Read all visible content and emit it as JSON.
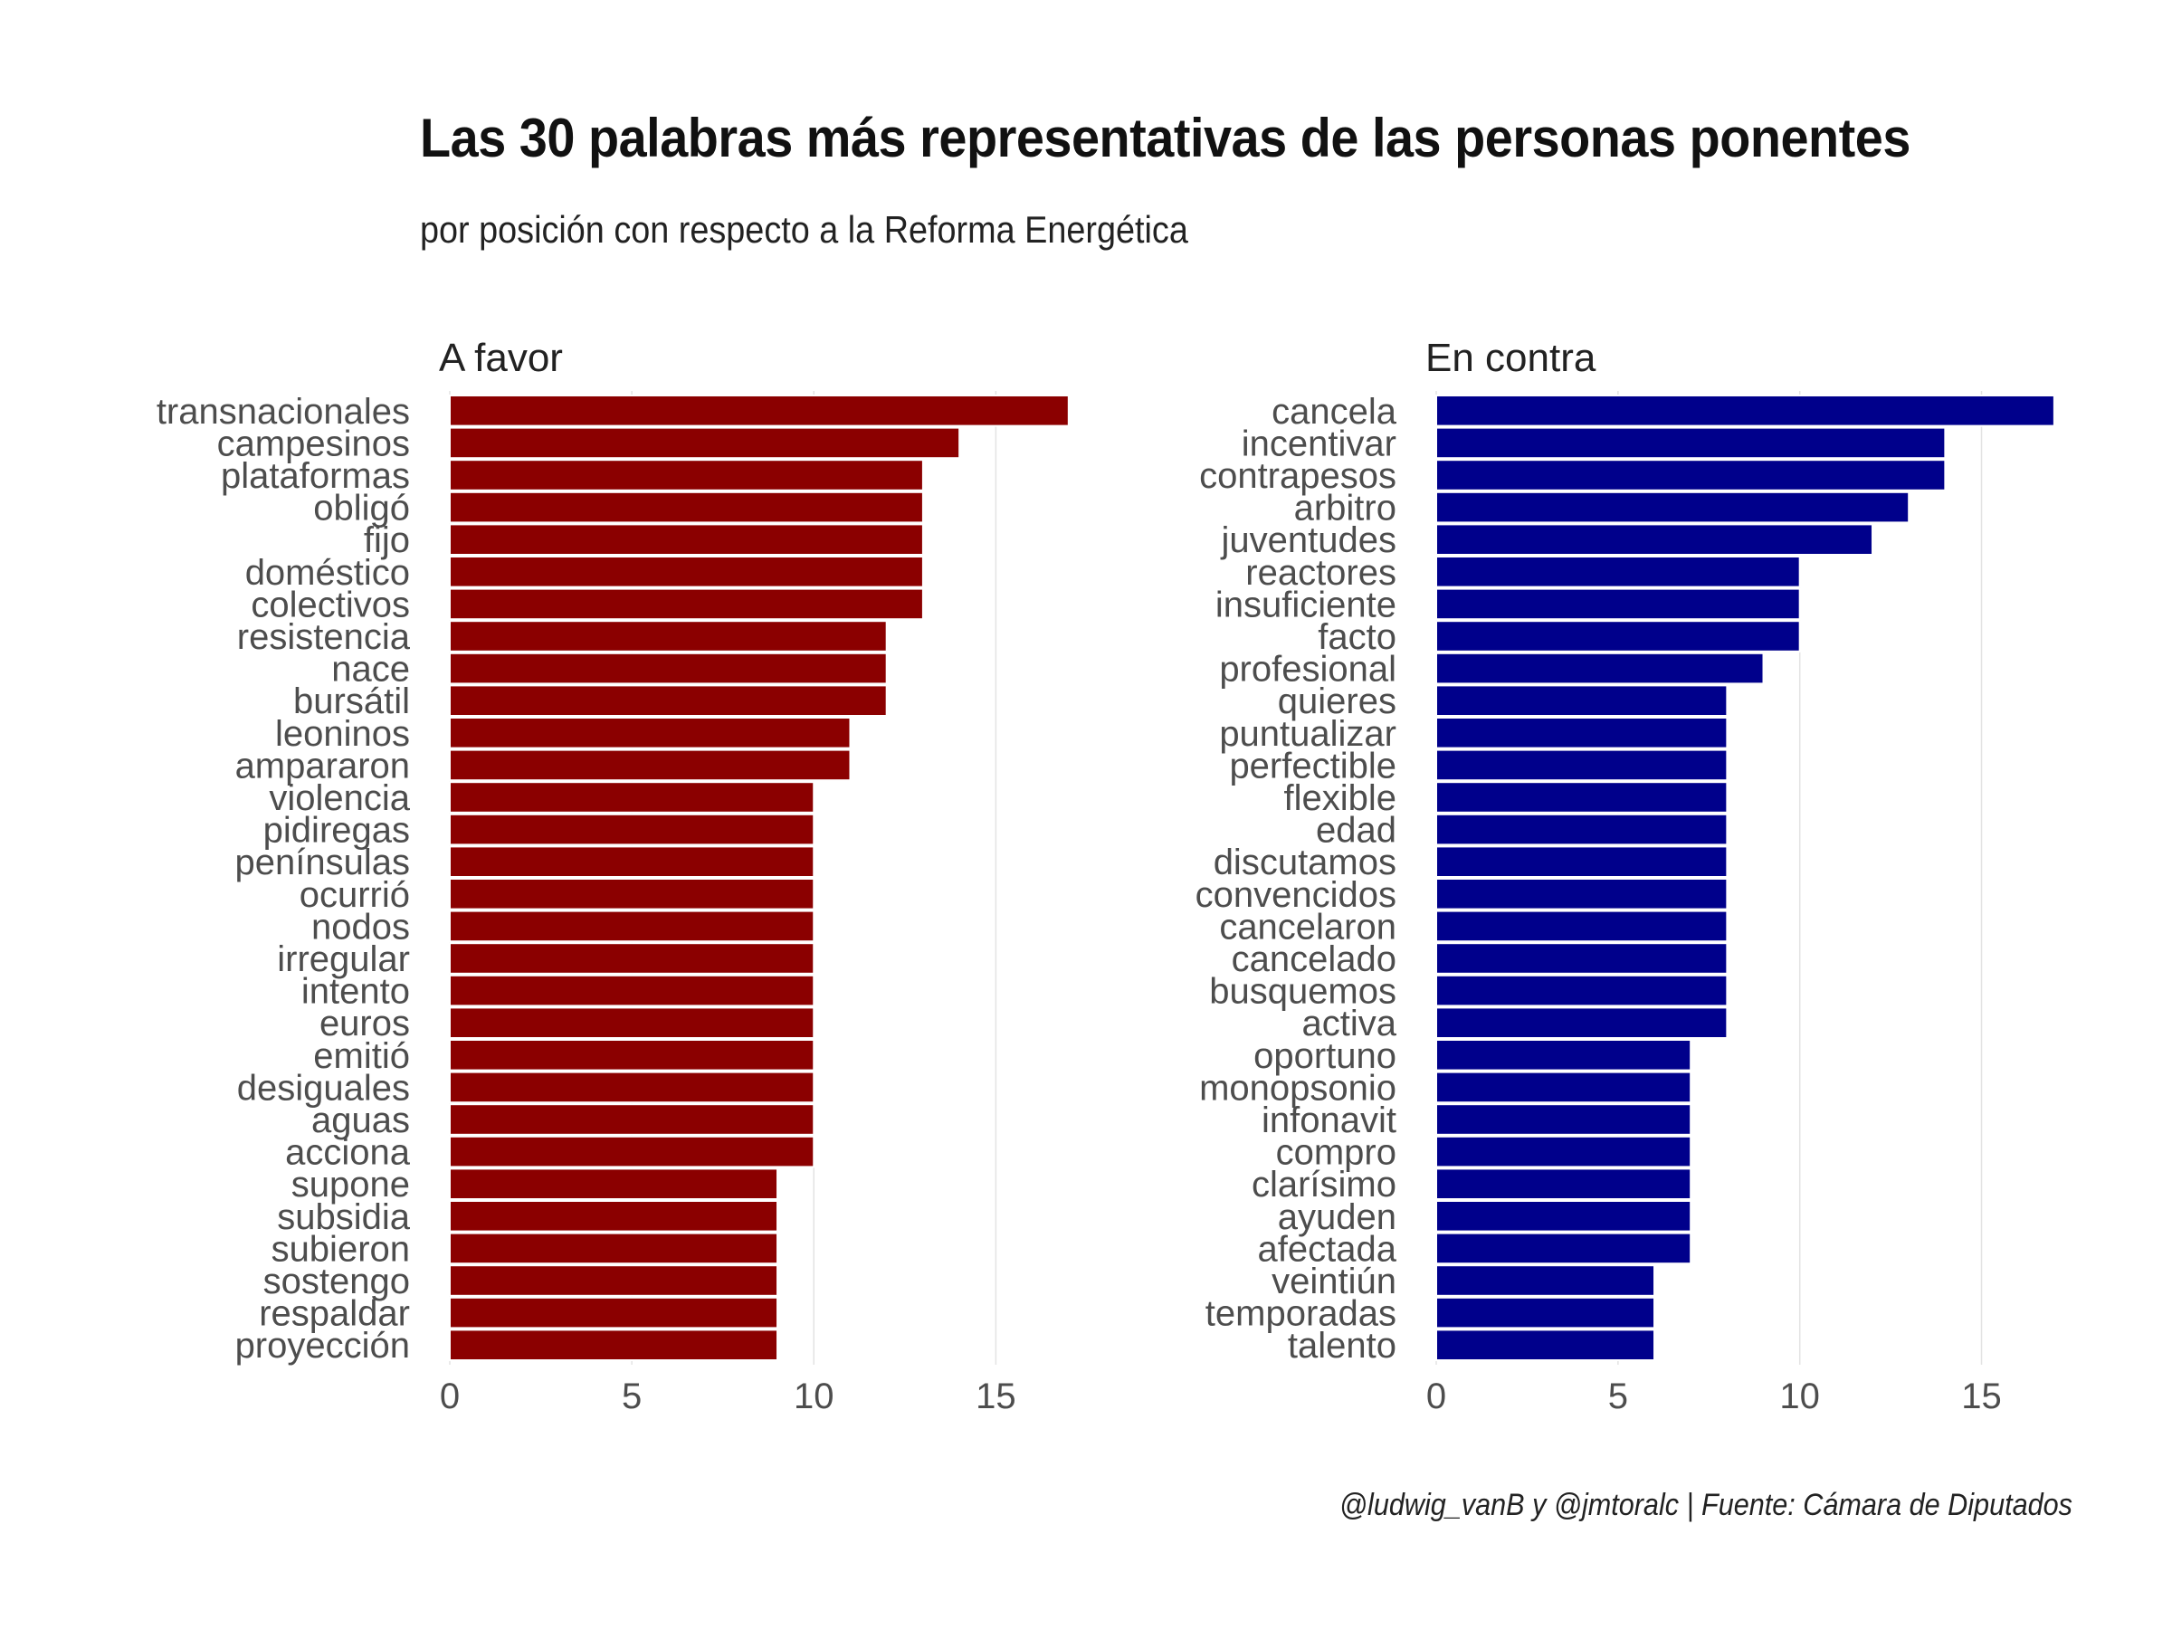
{
  "title": "Las 30 palabras más representativas de las personas ponentes",
  "subtitle": "por posición con respecto a la Reforma Energética",
  "caption": "@ludwig_vanB y @jmtoralc | Fuente: Cámara de Diputados",
  "colors": {
    "a_favor": "#8B0000",
    "en_contra": "#00008B",
    "grid": "#e3e3e3",
    "axis_text": "#4d4d4d"
  },
  "chart_data": [
    {
      "type": "bar",
      "orientation": "horizontal",
      "panel_title": "A favor",
      "xlim": [
        0,
        17.8
      ],
      "xticks": [
        0,
        5,
        10,
        15
      ],
      "grid": true,
      "categories": [
        "transnacionales",
        "campesinos",
        "plataformas",
        "obligó",
        "fijo",
        "doméstico",
        "colectivos",
        "resistencia",
        "nace",
        "bursátil",
        "leoninos",
        "ampararon",
        "violencia",
        "pidiregas",
        "penínsulas",
        "ocurrió",
        "nodos",
        "irregular",
        "intento",
        "euros",
        "emitió",
        "desiguales",
        "aguas",
        "acciona",
        "supone",
        "subsidia",
        "subieron",
        "sostengo",
        "respaldar",
        "proyección"
      ],
      "values": [
        17,
        14,
        13,
        13,
        13,
        13,
        13,
        12,
        12,
        12,
        11,
        11,
        10,
        10,
        10,
        10,
        10,
        10,
        10,
        10,
        10,
        10,
        10,
        10,
        9,
        9,
        9,
        9,
        9,
        9
      ]
    },
    {
      "type": "bar",
      "orientation": "horizontal",
      "panel_title": "En contra",
      "xlim": [
        0,
        17.8
      ],
      "xticks": [
        0,
        5,
        10,
        15
      ],
      "grid": true,
      "categories": [
        "cancela",
        "incentivar",
        "contrapesos",
        "arbitro",
        "juventudes",
        "reactores",
        "insuficiente",
        "facto",
        "profesional",
        "quieres",
        "puntualizar",
        "perfectible",
        "flexible",
        "edad",
        "discutamos",
        "convencidos",
        "cancelaron",
        "cancelado",
        "busquemos",
        "activa",
        "oportuno",
        "monopsonio",
        "infonavit",
        "compro",
        "clarísimo",
        "ayuden",
        "afectada",
        "veintiún",
        "temporadas",
        "talento"
      ],
      "values": [
        17,
        14,
        14,
        13,
        12,
        10,
        10,
        10,
        9,
        8,
        8,
        8,
        8,
        8,
        8,
        8,
        8,
        8,
        8,
        8,
        7,
        7,
        7,
        7,
        7,
        7,
        7,
        6,
        6,
        6
      ]
    }
  ]
}
